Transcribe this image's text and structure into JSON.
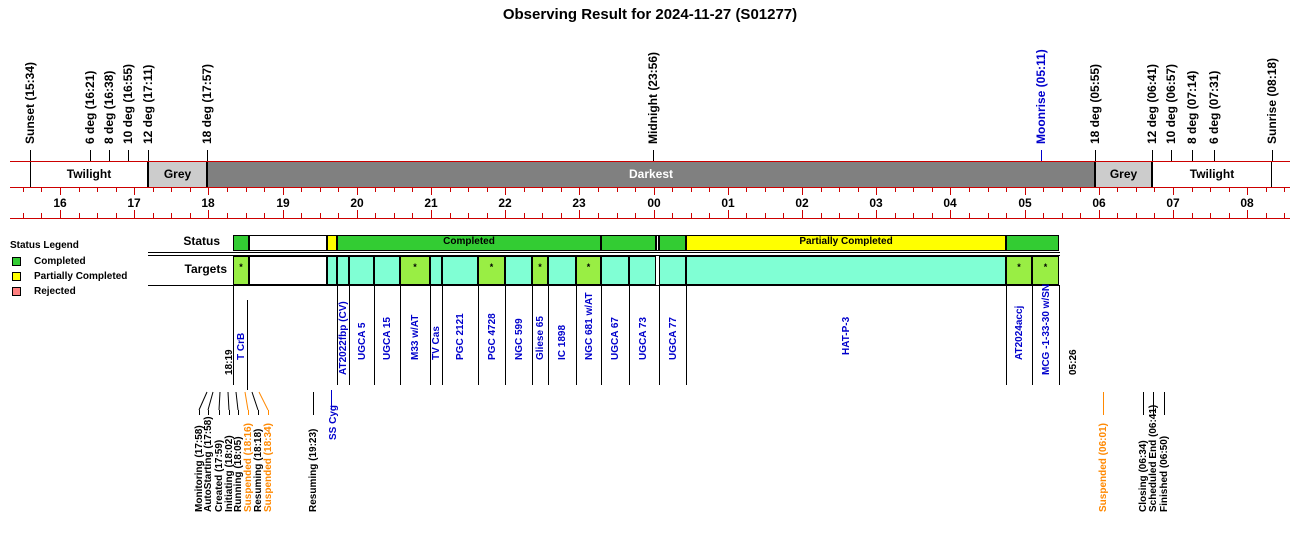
{
  "title": "Observing Result for 2024-11-27 (S01277)",
  "colors": {
    "completed": "#33cc33",
    "partial": "#ffff00",
    "rejected": "#ff8080",
    "target": "#80ffd4",
    "target_done": "#99ee44",
    "darkest": "#808080",
    "grey": "#cccccc",
    "axis": "#cc0000",
    "blue": "#0000cc",
    "orange": "#ff8800"
  },
  "twilight_events": [
    {
      "label": "Sunset (15:34)",
      "color": "black"
    },
    {
      "label": "6 deg (16:21)",
      "color": "black"
    },
    {
      "label": "8 deg (16:38)",
      "color": "black"
    },
    {
      "label": "10 deg (16:55)",
      "color": "black"
    },
    {
      "label": "12 deg (17:11)",
      "color": "black"
    },
    {
      "label": "18 deg (17:57)",
      "color": "black"
    },
    {
      "label": "Midnight (23:56)",
      "color": "black"
    },
    {
      "label": "Moonrise (05:11)",
      "color": "blue"
    },
    {
      "label": "18 deg (05:55)",
      "color": "black"
    },
    {
      "label": "12 deg (06:41)",
      "color": "black"
    },
    {
      "label": "10 deg (06:57)",
      "color": "black"
    },
    {
      "label": "8 deg (07:14)",
      "color": "black"
    },
    {
      "label": "6 deg (07:31)",
      "color": "black"
    },
    {
      "label": "Sunrise (08:18)",
      "color": "black"
    }
  ],
  "sky_bands": [
    "Twilight",
    "Grey",
    "Darkest",
    "Grey",
    "Twilight"
  ],
  "hours": [
    "16",
    "17",
    "18",
    "19",
    "20",
    "21",
    "22",
    "23",
    "00",
    "01",
    "02",
    "03",
    "04",
    "05",
    "06",
    "07",
    "08"
  ],
  "legend": {
    "title": "Status Legend",
    "items": [
      "Completed",
      "Partially Completed",
      "Rejected"
    ]
  },
  "row_labels": {
    "status": "Status",
    "targets": "Targets"
  },
  "status_labels": {
    "completed": "Completed",
    "partial": "Partially Completed"
  },
  "marker": "*",
  "targets": [
    {
      "name": "T CrB",
      "status": "completed"
    },
    {
      "name": "AT2022fbp (CV)",
      "status": "completed"
    },
    {
      "name": "UGCA 5",
      "status": "completed"
    },
    {
      "name": "UGCA 15",
      "status": "completed"
    },
    {
      "name": "M33 w/AT",
      "status": "completed"
    },
    {
      "name": "TV Cas",
      "status": "completed"
    },
    {
      "name": "PGC 2121",
      "status": "completed"
    },
    {
      "name": "PGC 4728",
      "status": "completed"
    },
    {
      "name": "NGC 599",
      "status": "completed"
    },
    {
      "name": "Gliese 65",
      "status": "completed"
    },
    {
      "name": "IC 1898",
      "status": "completed"
    },
    {
      "name": "NGC 681 w/AT",
      "status": "completed"
    },
    {
      "name": "UGCA 67",
      "status": "completed"
    },
    {
      "name": "UGCA 73",
      "status": "completed"
    },
    {
      "name": "UGCA 77",
      "status": "completed"
    },
    {
      "name": "HAT-P-3",
      "status": "partial"
    },
    {
      "name": "AT2024accj",
      "status": "completed"
    },
    {
      "name": "MCG -1-33-30 w/SN",
      "status": "completed"
    }
  ],
  "time_marks": {
    "start": "18:19",
    "end": "05:26",
    "ss_cyg": "SS Cyg"
  },
  "system_events": [
    {
      "label": "Monitoring (17:58)",
      "color": "black"
    },
    {
      "label": "AutoStarting (17:58)",
      "color": "black"
    },
    {
      "label": "Created (17:59)",
      "color": "black"
    },
    {
      "label": "Initiating (18:02)",
      "color": "black"
    },
    {
      "label": "Running (18:05)",
      "color": "black"
    },
    {
      "label": "Suspended (18:16)",
      "color": "orange"
    },
    {
      "label": "Resuming (18:18)",
      "color": "black"
    },
    {
      "label": "Suspended (18:34)",
      "color": "orange"
    },
    {
      "label": "Resuming (19:23)",
      "color": "black"
    },
    {
      "label": "Suspended (06:01)",
      "color": "orange"
    },
    {
      "label": "Closing (06:34)",
      "color": "black"
    },
    {
      "label": "Scheduled End (06:41)",
      "color": "black"
    },
    {
      "label": "Finished (06:50)",
      "color": "black"
    }
  ]
}
